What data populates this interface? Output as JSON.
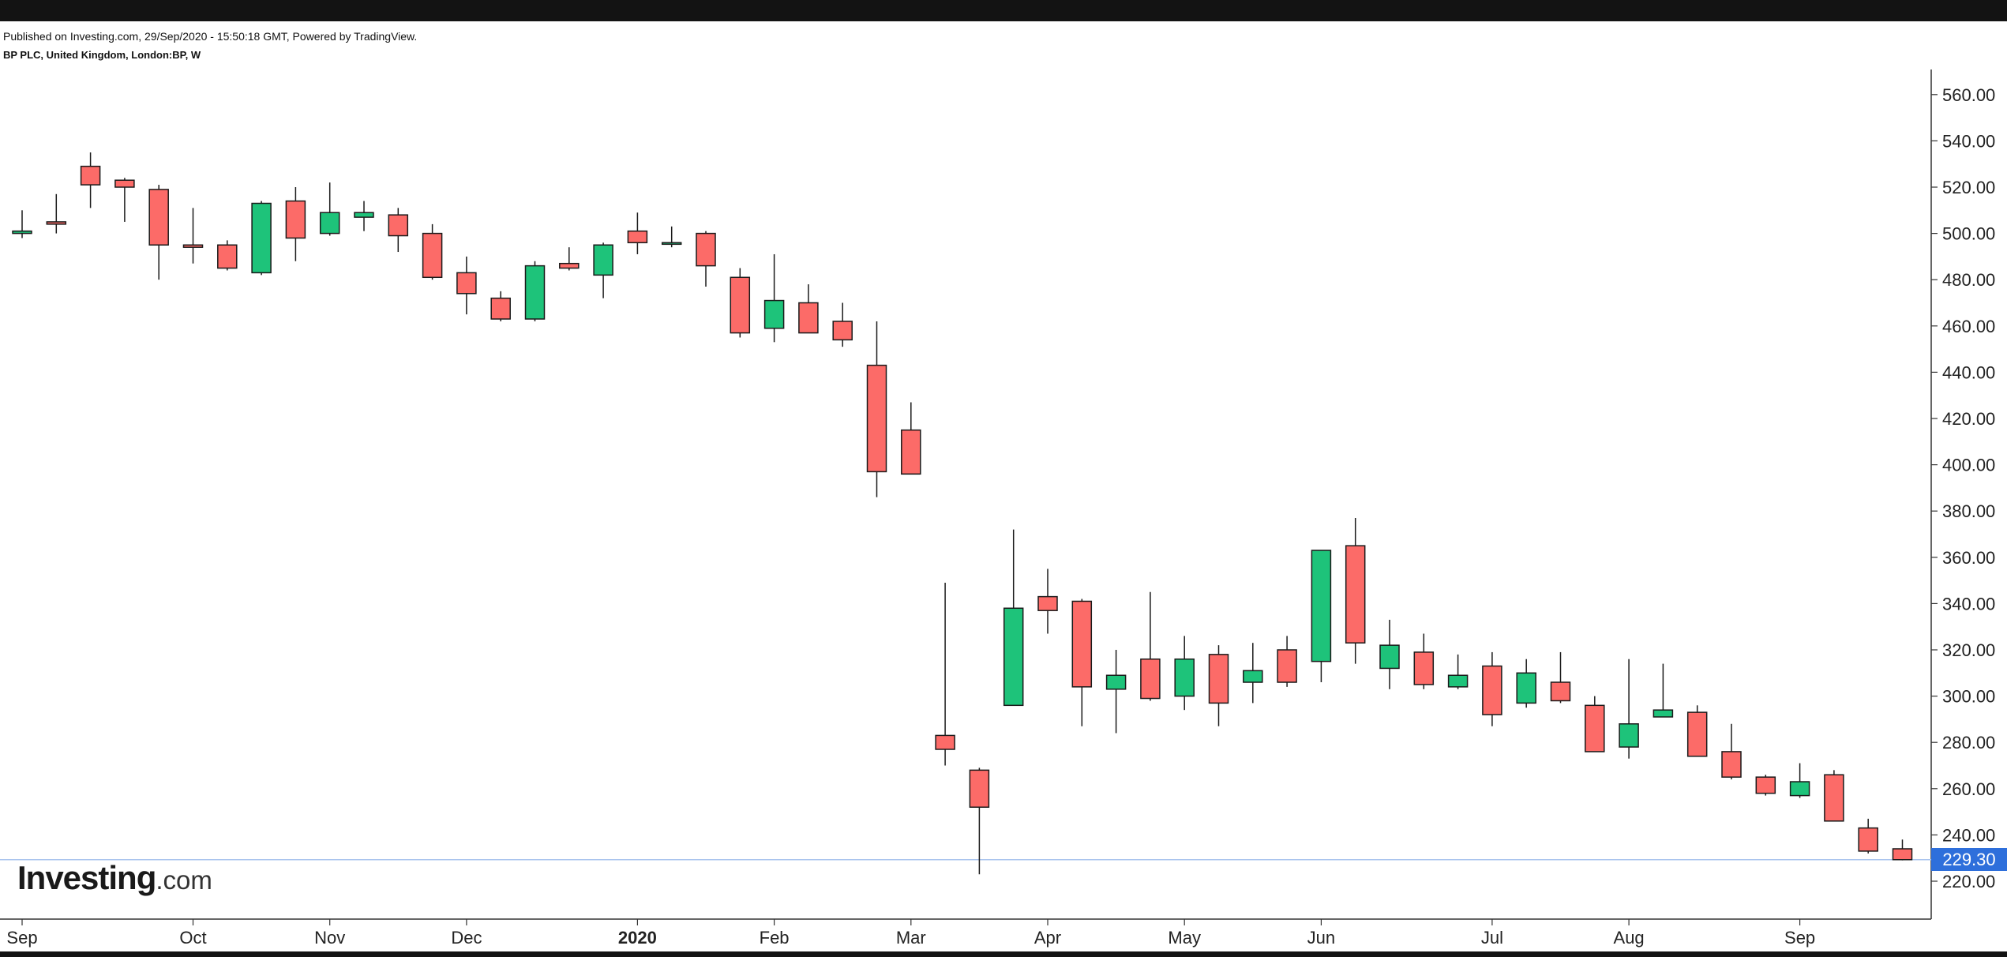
{
  "header": {
    "published": "Published on Investing.com, 29/Sep/2020 - 15:50:18 GMT, Powered by TradingView.",
    "symbol": "BP PLC, United Kingdom, London:BP, W"
  },
  "logo": {
    "main": "Investing",
    "suffix": ".com"
  },
  "last_price_label": "229.30",
  "colors": {
    "up": "#1ec37a",
    "down": "#fc6b68",
    "wick": "#1a1a1a",
    "price_line": "#aac4ee",
    "price_tag": "#2e6fdb"
  },
  "chart_data": {
    "type": "candlestick",
    "ylim": [
      200,
      565
    ],
    "y_ticks": [
      220,
      240,
      260,
      280,
      300,
      320,
      340,
      360,
      380,
      400,
      420,
      440,
      460,
      480,
      500,
      520,
      540,
      560
    ],
    "y_tick_labels": [
      "220.00",
      "240.00",
      "260.00",
      "280.00",
      "300.00",
      "320.00",
      "340.00",
      "360.00",
      "380.00",
      "400.00",
      "420.00",
      "440.00",
      "460.00",
      "480.00",
      "500.00",
      "520.00",
      "540.00",
      "560.00"
    ],
    "x_ticks": [
      {
        "label": "Sep",
        "week": 0,
        "bold": false
      },
      {
        "label": "Oct",
        "week": 5,
        "bold": false
      },
      {
        "label": "Nov",
        "week": 9,
        "bold": false
      },
      {
        "label": "Dec",
        "week": 13,
        "bold": false
      },
      {
        "label": "2020",
        "week": 18,
        "bold": true
      },
      {
        "label": "Feb",
        "week": 22,
        "bold": false
      },
      {
        "label": "Mar",
        "week": 26,
        "bold": false
      },
      {
        "label": "Apr",
        "week": 30,
        "bold": false
      },
      {
        "label": "May",
        "week": 34,
        "bold": false
      },
      {
        "label": "Jun",
        "week": 38,
        "bold": false
      },
      {
        "label": "Jul",
        "week": 43,
        "bold": false
      },
      {
        "label": "Aug",
        "week": 47,
        "bold": false
      },
      {
        "label": "Sep",
        "week": 52,
        "bold": false
      }
    ],
    "last_price": 229.3,
    "candles": [
      {
        "o": 500,
        "h": 510,
        "l": 498,
        "c": 501
      },
      {
        "o": 505,
        "h": 517,
        "l": 500,
        "c": 504
      },
      {
        "o": 529,
        "h": 535,
        "l": 511,
        "c": 521
      },
      {
        "o": 523,
        "h": 524,
        "l": 505,
        "c": 520
      },
      {
        "o": 519,
        "h": 521,
        "l": 480,
        "c": 495
      },
      {
        "o": 495,
        "h": 511,
        "l": 487,
        "c": 494
      },
      {
        "o": 495,
        "h": 497,
        "l": 484,
        "c": 485
      },
      {
        "o": 483,
        "h": 514,
        "l": 482,
        "c": 513
      },
      {
        "o": 514,
        "h": 520,
        "l": 488,
        "c": 498
      },
      {
        "o": 500,
        "h": 522,
        "l": 499,
        "c": 509
      },
      {
        "o": 507,
        "h": 514,
        "l": 501,
        "c": 509
      },
      {
        "o": 508,
        "h": 511,
        "l": 492,
        "c": 499
      },
      {
        "o": 500,
        "h": 504,
        "l": 480,
        "c": 481
      },
      {
        "o": 483,
        "h": 490,
        "l": 465,
        "c": 474
      },
      {
        "o": 472,
        "h": 475,
        "l": 462,
        "c": 463
      },
      {
        "o": 463,
        "h": 488,
        "l": 462,
        "c": 486
      },
      {
        "o": 487,
        "h": 494,
        "l": 484,
        "c": 485
      },
      {
        "o": 482,
        "h": 496,
        "l": 472,
        "c": 495
      },
      {
        "o": 501,
        "h": 509,
        "l": 491,
        "c": 496
      },
      {
        "o": 496,
        "h": 503,
        "l": 494,
        "c": 496
      },
      {
        "o": 500,
        "h": 501,
        "l": 477,
        "c": 486
      },
      {
        "o": 481,
        "h": 485,
        "l": 455,
        "c": 457
      },
      {
        "o": 459,
        "h": 491,
        "l": 453,
        "c": 471
      },
      {
        "o": 470,
        "h": 478,
        "l": 457,
        "c": 457
      },
      {
        "o": 462,
        "h": 470,
        "l": 451,
        "c": 454
      },
      {
        "o": 443,
        "h": 462,
        "l": 386,
        "c": 397
      },
      {
        "o": 415,
        "h": 427,
        "l": 396,
        "c": 396
      },
      {
        "o": 283,
        "h": 349,
        "l": 270,
        "c": 277
      },
      {
        "o": 268,
        "h": 269,
        "l": 223,
        "c": 252
      },
      {
        "o": 296,
        "h": 372,
        "l": 296,
        "c": 338
      },
      {
        "o": 343,
        "h": 355,
        "l": 327,
        "c": 337
      },
      {
        "o": 341,
        "h": 342,
        "l": 287,
        "c": 304
      },
      {
        "o": 303,
        "h": 320,
        "l": 284,
        "c": 309
      },
      {
        "o": 316,
        "h": 345,
        "l": 298,
        "c": 299
      },
      {
        "o": 300,
        "h": 326,
        "l": 294,
        "c": 316
      },
      {
        "o": 318,
        "h": 322,
        "l": 287,
        "c": 297
      },
      {
        "o": 306,
        "h": 323,
        "l": 297,
        "c": 311
      },
      {
        "o": 320,
        "h": 326,
        "l": 304,
        "c": 306
      },
      {
        "o": 315,
        "h": 363,
        "l": 306,
        "c": 363
      },
      {
        "o": 365,
        "h": 377,
        "l": 314,
        "c": 323
      },
      {
        "o": 312,
        "h": 333,
        "l": 303,
        "c": 322
      },
      {
        "o": 319,
        "h": 327,
        "l": 303,
        "c": 305
      },
      {
        "o": 304,
        "h": 318,
        "l": 303,
        "c": 309
      },
      {
        "o": 313,
        "h": 319,
        "l": 287,
        "c": 292
      },
      {
        "o": 297,
        "h": 316,
        "l": 295,
        "c": 310
      },
      {
        "o": 306,
        "h": 319,
        "l": 297,
        "c": 298
      },
      {
        "o": 296,
        "h": 300,
        "l": 276,
        "c": 276
      },
      {
        "o": 278,
        "h": 316,
        "l": 273,
        "c": 288
      },
      {
        "o": 291,
        "h": 314,
        "l": 291,
        "c": 294
      },
      {
        "o": 293,
        "h": 296,
        "l": 274,
        "c": 274
      },
      {
        "o": 276,
        "h": 288,
        "l": 264,
        "c": 265
      },
      {
        "o": 265,
        "h": 266,
        "l": 257,
        "c": 258
      },
      {
        "o": 257,
        "h": 271,
        "l": 256,
        "c": 263
      },
      {
        "o": 266,
        "h": 268,
        "l": 246,
        "c": 246
      },
      {
        "o": 243,
        "h": 247,
        "l": 232,
        "c": 233
      },
      {
        "o": 234,
        "h": 238,
        "l": 229,
        "c": 229.3
      }
    ]
  }
}
